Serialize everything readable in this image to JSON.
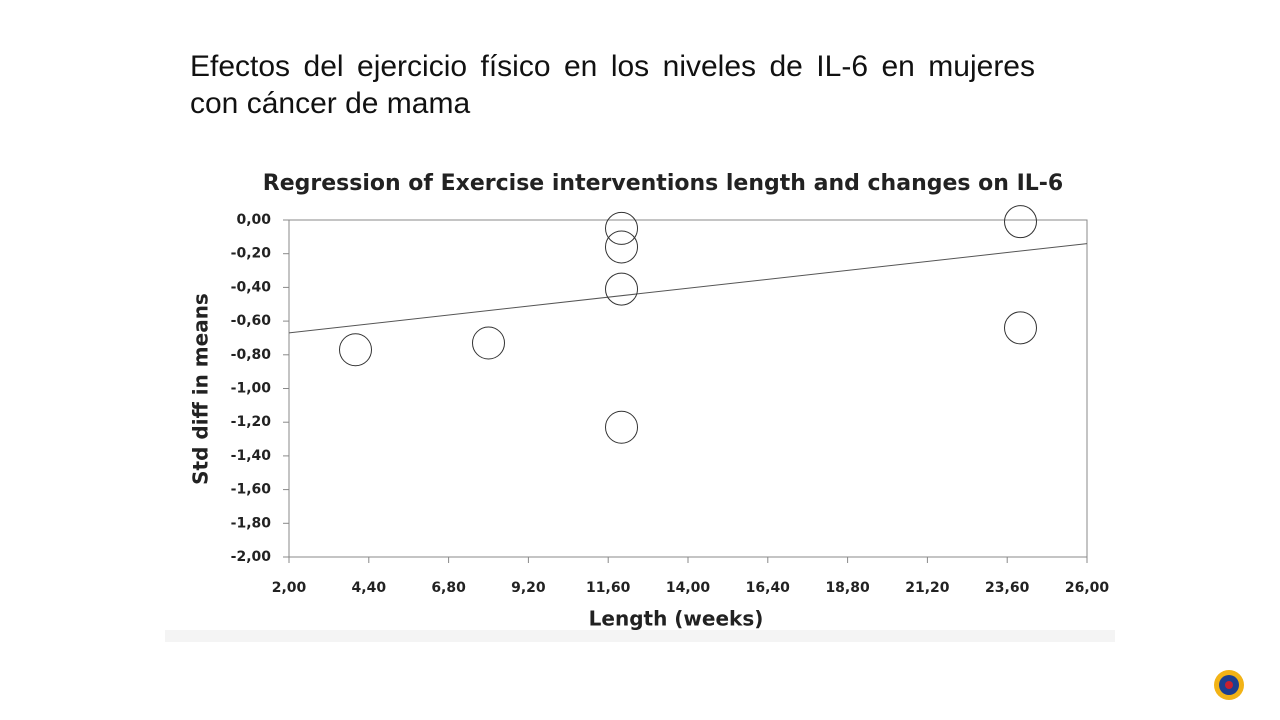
{
  "slide": {
    "title": "Efectos del ejercicio físico en los niveles de IL-6 en mujeres con cáncer de mama"
  },
  "chart_data": {
    "type": "scatter",
    "title": "Regression of Exercise interventions length and changes on IL-6",
    "x_label": "Length (weeks)",
    "y_label": "Std diff in means",
    "x": [
      4,
      8,
      12,
      12,
      12,
      12,
      24,
      24
    ],
    "y": [
      -0.77,
      -0.73,
      -0.05,
      -0.16,
      -0.41,
      -1.23,
      -0.01,
      -0.64
    ],
    "regression_line": {
      "x": [
        2,
        26
      ],
      "y": [
        -0.67,
        -0.14
      ]
    },
    "xlim": [
      2,
      26
    ],
    "ylim": [
      -2,
      0
    ],
    "xticks": [
      {
        "value": 2,
        "label": "2,00"
      },
      {
        "value": 4.4,
        "label": "4,40"
      },
      {
        "value": 6.8,
        "label": "6,80"
      },
      {
        "value": 9.2,
        "label": "9,20"
      },
      {
        "value": 11.6,
        "label": "11,60"
      },
      {
        "value": 14,
        "label": "14,00"
      },
      {
        "value": 16.4,
        "label": "16,40"
      },
      {
        "value": 18.8,
        "label": "18,80"
      },
      {
        "value": 21.2,
        "label": "21,20"
      },
      {
        "value": 23.6,
        "label": "23,60"
      },
      {
        "value": 26,
        "label": "26,00"
      }
    ],
    "yticks": [
      {
        "value": 0,
        "label": "0,00"
      },
      {
        "value": -0.2,
        "label": "-0,20"
      },
      {
        "value": -0.4,
        "label": "-0,40"
      },
      {
        "value": -0.6,
        "label": "-0,60"
      },
      {
        "value": -0.8,
        "label": "-0,80"
      },
      {
        "value": -1,
        "label": "-1,00"
      },
      {
        "value": -1.2,
        "label": "-1,20"
      },
      {
        "value": -1.4,
        "label": "-1,40"
      },
      {
        "value": -1.6,
        "label": "-1,60"
      },
      {
        "value": -1.8,
        "label": "-1,80"
      },
      {
        "value": -2,
        "label": "-2,00"
      }
    ]
  }
}
